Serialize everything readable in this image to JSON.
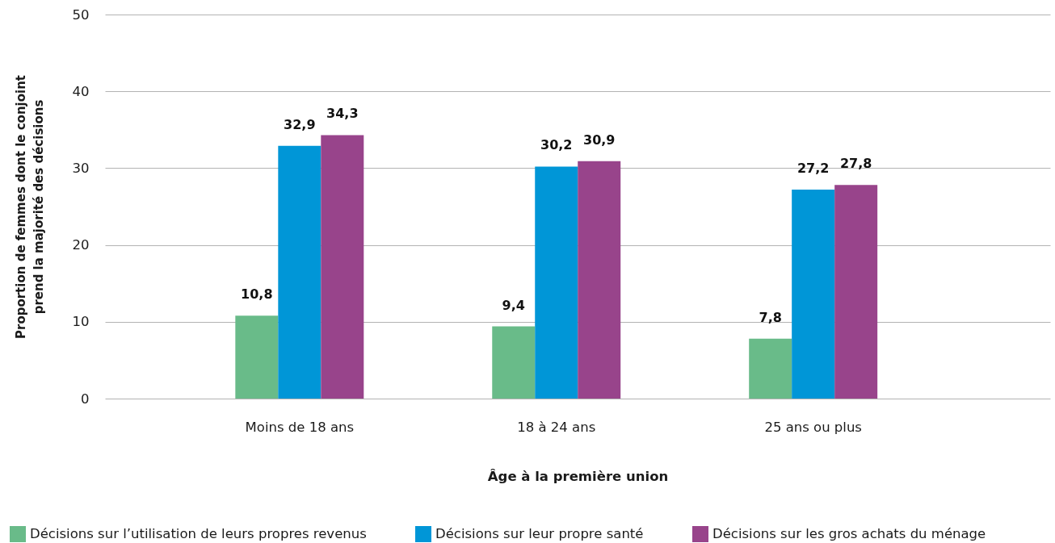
{
  "chart_data": {
    "type": "bar",
    "xlabel": "Âge à la première union",
    "ylabel": "Proportion de femmes dont le conjoint prend la majorité des décisions",
    "categories": [
      "Moins de 18 ans",
      "18 à 24 ans",
      "25 ans ou plus"
    ],
    "series": [
      {
        "name": "Décisions sur l’utilisation de leurs propres revenus",
        "color": "#69bb89",
        "values": [
          10.8,
          9.4,
          7.8
        ],
        "value_labels": [
          "10,8",
          "9,4",
          "7,8"
        ]
      },
      {
        "name": "Décisions sur leur propre santé",
        "color": "#0096d7",
        "values": [
          32.9,
          30.2,
          27.2
        ],
        "value_labels": [
          "32,9",
          "30,2",
          "27,2"
        ]
      },
      {
        "name": "Décisions sur les gros achats du ménage",
        "color": "#98448b",
        "values": [
          34.3,
          30.9,
          27.8
        ],
        "value_labels": [
          "34,3",
          "30,9",
          "27,8"
        ]
      }
    ],
    "ylim": [
      0,
      50
    ],
    "yticks": [
      0,
      10,
      20,
      30,
      40,
      50
    ],
    "grid": "y",
    "legend": "bottom"
  }
}
